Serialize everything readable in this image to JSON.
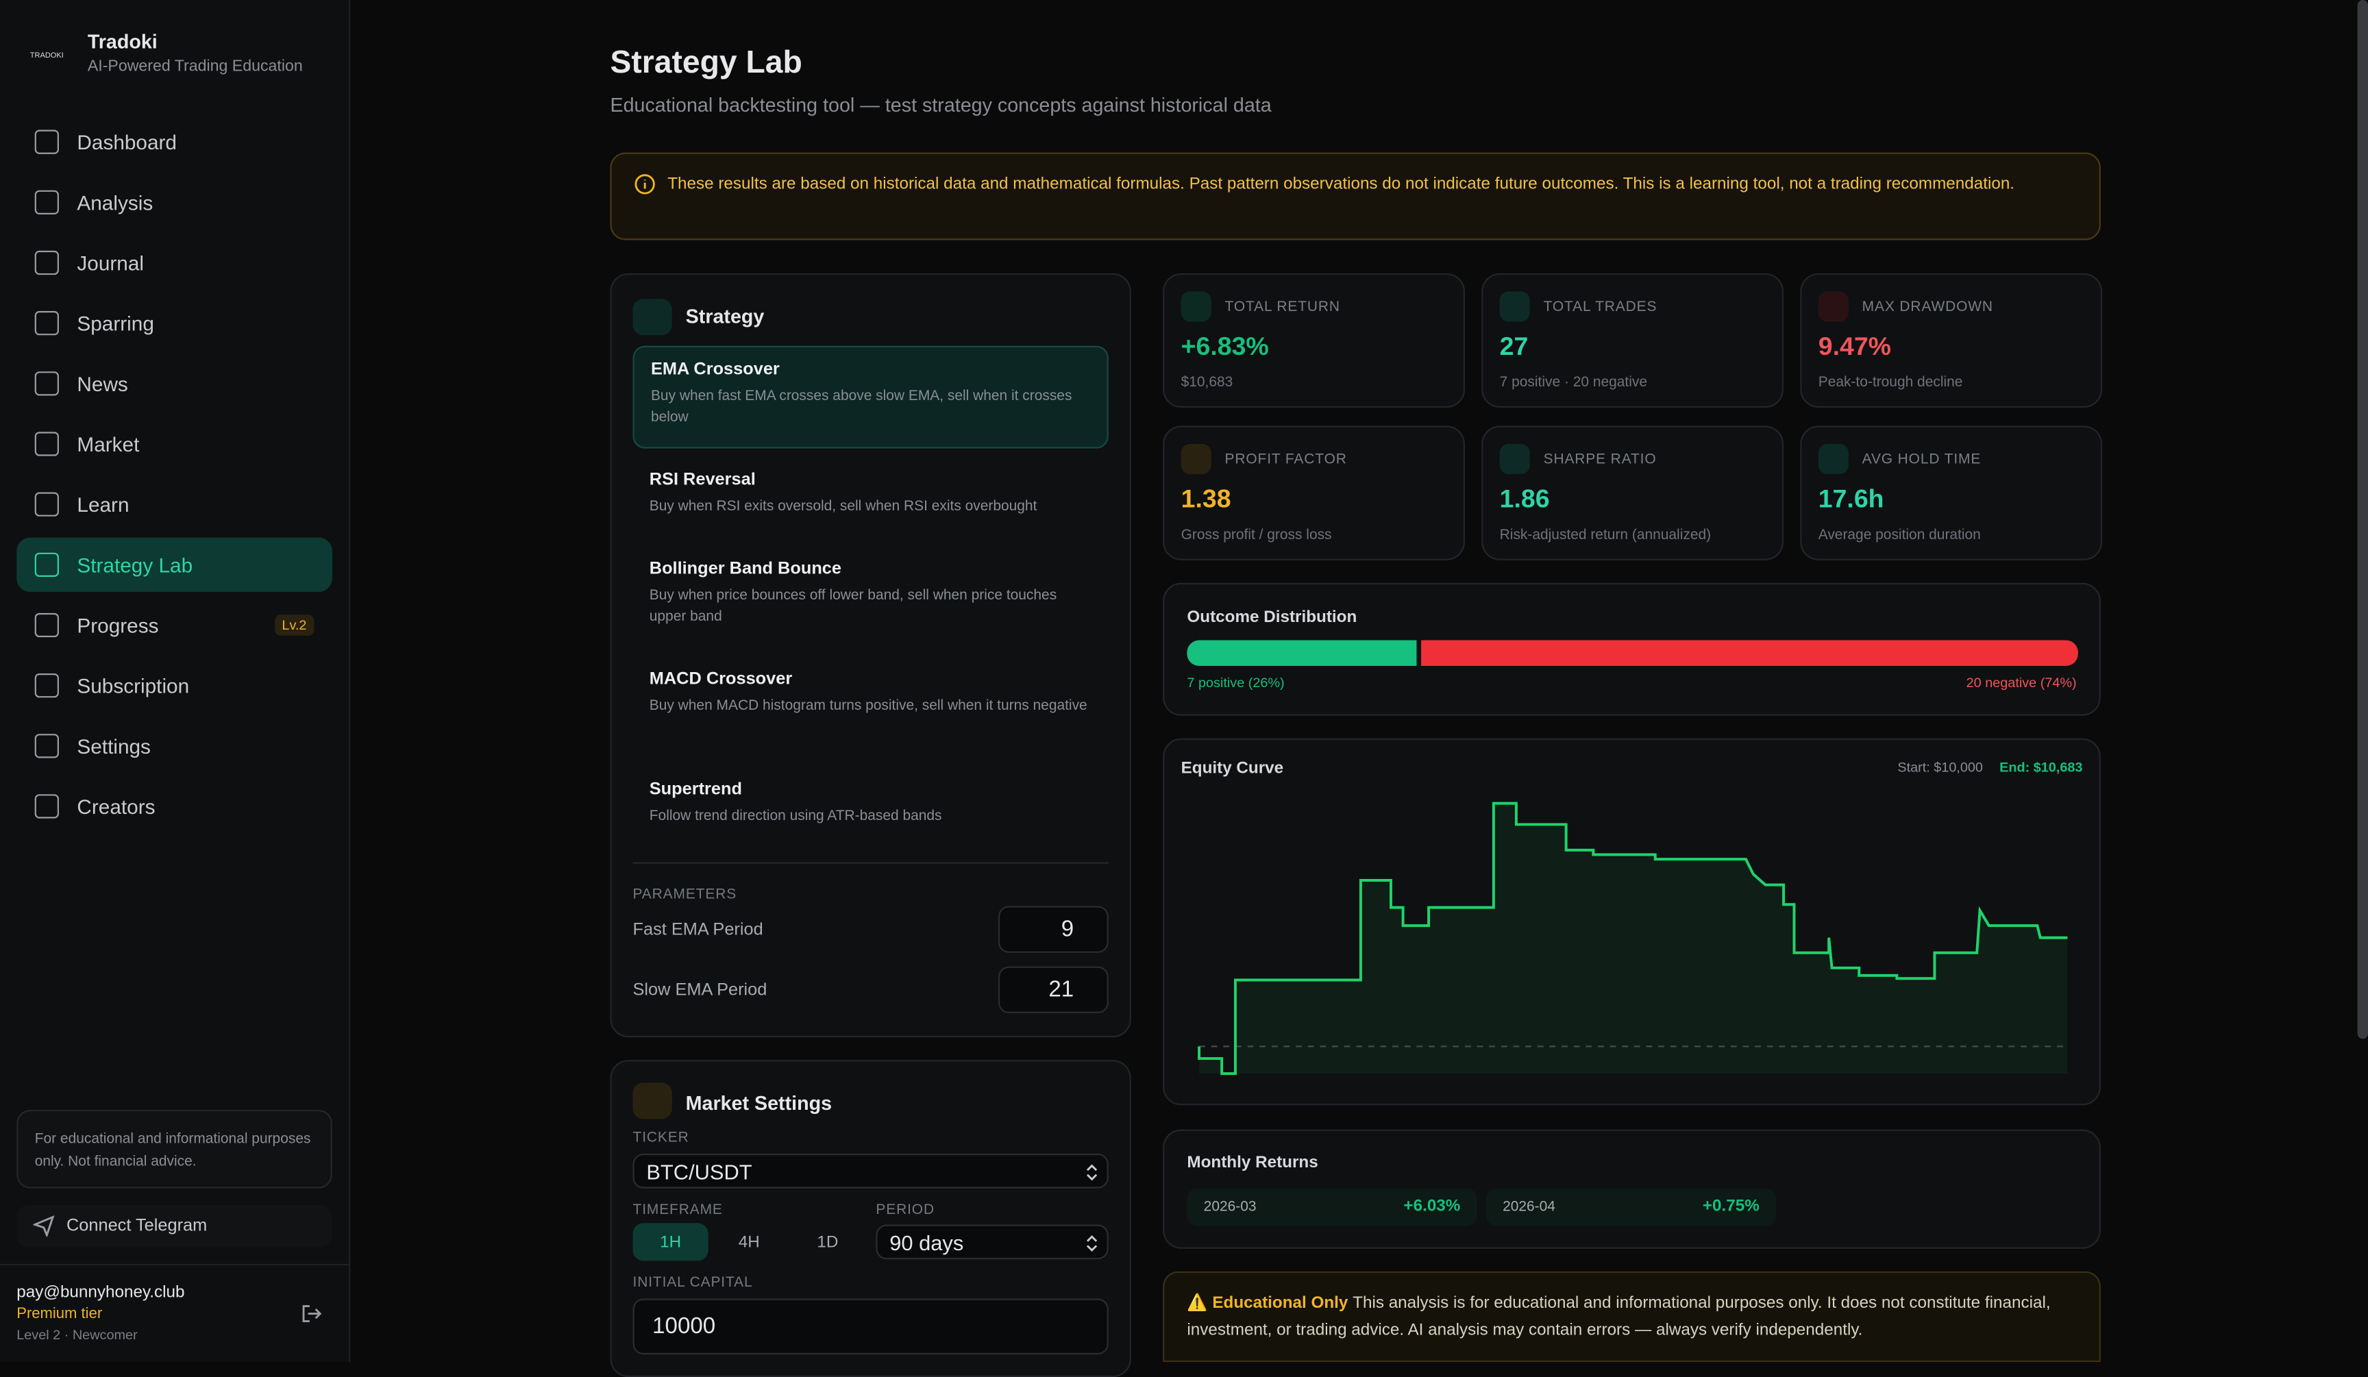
{
  "sidebar": {
    "logo_text": "TRADOKI",
    "brand": "Tradoki",
    "tagline": "AI-Powered Trading Education",
    "nav": [
      "Dashboard",
      "Analysis",
      "Journal",
      "Sparring",
      "News",
      "Market",
      "Learn",
      "Strategy Lab",
      "Progress",
      "Subscription",
      "Settings",
      "Creators"
    ],
    "progress_badge": "Lv.2",
    "disclaimer": "For educational and informational purposes only. Not financial advice.",
    "connect": "Connect Telegram",
    "user": {
      "email": "pay@bunnyhoney.club",
      "tier": "Premium tier",
      "level": "Level 2 · Newcomer"
    }
  },
  "header": {
    "title": "Strategy Lab",
    "subtitle": "Educational backtesting tool — test strategy concepts against historical data",
    "warning": "These results are based on historical data and mathematical formulas. Past pattern observations do not indicate future outcomes. This is a learning tool, not a trading recommendation."
  },
  "strategy": {
    "heading": "Strategy",
    "options": [
      {
        "name": "EMA Crossover",
        "desc": "Buy when fast EMA crosses above slow EMA, sell when it crosses below"
      },
      {
        "name": "RSI Reversal",
        "desc": "Buy when RSI exits oversold, sell when RSI exits overbought"
      },
      {
        "name": "Bollinger Band Bounce",
        "desc": "Buy when price bounces off lower band, sell when price touches upper band"
      },
      {
        "name": "MACD Crossover",
        "desc": "Buy when MACD histogram turns positive, sell when it turns negative"
      },
      {
        "name": "Supertrend",
        "desc": "Follow trend direction using ATR-based bands"
      }
    ],
    "parameters_label": "PARAMETERS",
    "params": [
      {
        "label": "Fast EMA Period",
        "value": 9
      },
      {
        "label": "Slow EMA Period",
        "value": 21
      }
    ]
  },
  "market": {
    "heading": "Market Settings",
    "ticker_label": "TICKER",
    "ticker": "BTC/USDT",
    "timeframe_label": "TIMEFRAME",
    "timeframes": [
      "1H",
      "4H",
      "1D"
    ],
    "period_label": "PERIOD",
    "period": "90 days",
    "capital_label": "INITIAL CAPITAL",
    "capital": 10000
  },
  "stats": [
    {
      "label": "TOTAL RETURN",
      "value": "+6.83%",
      "sub": "$10,683"
    },
    {
      "label": "TOTAL TRADES",
      "value": "27",
      "sub": "7 positive · 20 negative"
    },
    {
      "label": "MAX DRAWDOWN",
      "value": "9.47%",
      "sub": "Peak-to-trough decline"
    },
    {
      "label": "PROFIT FACTOR",
      "value": "1.38",
      "sub": "Gross profit / gross loss"
    },
    {
      "label": "SHARPE RATIO",
      "value": "1.86",
      "sub": "Risk-adjusted return (annualized)"
    },
    {
      "label": "AVG HOLD TIME",
      "value": "17.6h",
      "sub": "Average position duration"
    }
  ],
  "outcome": {
    "title": "Outcome Distribution",
    "positive_label": "7 positive (26%)",
    "negative_label": "20 negative (74%)"
  },
  "equity": {
    "title": "Equity Curve",
    "start": "Start: $10,000",
    "end": "End: $10,683"
  },
  "monthly": {
    "title": "Monthly Returns",
    "months": [
      {
        "month": "2026-03",
        "value": "+6.03%"
      },
      {
        "month": "2026-04",
        "value": "+0.75%"
      }
    ]
  },
  "notice": {
    "label": "⚠️ Educational Only",
    "text": "This analysis is for educational and informational purposes only. It does not constitute financial, investment, or trading advice. AI analysis may contain errors — always verify independently."
  }
}
